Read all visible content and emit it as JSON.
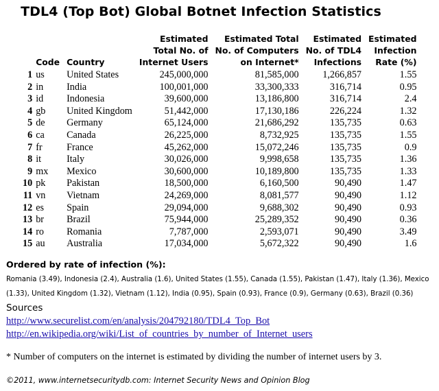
{
  "title": "TDL4 (Top Bot) Global Botnet Infection Statistics",
  "table": {
    "headers": {
      "code": "Code",
      "country": "Country",
      "users_1": "Estimated",
      "users_2": "Total No. of",
      "users_3": "Internet Users",
      "computers_1": "Estimated Total",
      "computers_2": "No. of Computers",
      "computers_3": "on Internet*",
      "infections_1": "Estimated",
      "infections_2": "No. of TDL4",
      "infections_3": "Infections",
      "rate_1": "Estimated",
      "rate_2": "Infection",
      "rate_3": "Rate (%)"
    },
    "rows": [
      {
        "rank": "1",
        "code": "us",
        "country": "United States",
        "users": "245,000,000",
        "computers": "81,585,000",
        "infections": "1,266,857",
        "rate": "1.55"
      },
      {
        "rank": "2",
        "code": "in",
        "country": "India",
        "users": "100,001,000",
        "computers": "33,300,333",
        "infections": "316,714",
        "rate": "0.95"
      },
      {
        "rank": "3",
        "code": "id",
        "country": "Indonesia",
        "users": "39,600,000",
        "computers": "13,186,800",
        "infections": "316,714",
        "rate": "2.4"
      },
      {
        "rank": "4",
        "code": "gb",
        "country": "United Kingdom",
        "users": "51,442,000",
        "computers": "17,130,186",
        "infections": "226,224",
        "rate": "1.32"
      },
      {
        "rank": "5",
        "code": "de",
        "country": "Germany",
        "users": "65,124,000",
        "computers": "21,686,292",
        "infections": "135,735",
        "rate": "0.63"
      },
      {
        "rank": "6",
        "code": "ca",
        "country": "Canada",
        "users": "26,225,000",
        "computers": "8,732,925",
        "infections": "135,735",
        "rate": "1.55"
      },
      {
        "rank": "7",
        "code": "fr",
        "country": "France",
        "users": "45,262,000",
        "computers": "15,072,246",
        "infections": "135,735",
        "rate": "0.9"
      },
      {
        "rank": "8",
        "code": "it",
        "country": "Italy",
        "users": "30,026,000",
        "computers": "9,998,658",
        "infections": "135,735",
        "rate": "1.36"
      },
      {
        "rank": "9",
        "code": "mx",
        "country": "Mexico",
        "users": "30,600,000",
        "computers": "10,189,800",
        "infections": "135,735",
        "rate": "1.33"
      },
      {
        "rank": "10",
        "code": "pk",
        "country": "Pakistan",
        "users": "18,500,000",
        "computers": "6,160,500",
        "infections": "90,490",
        "rate": "1.47"
      },
      {
        "rank": "11",
        "code": "vn",
        "country": "Vietnam",
        "users": "24,269,000",
        "computers": "8,081,577",
        "infections": "90,490",
        "rate": "1.12"
      },
      {
        "rank": "12",
        "code": "es",
        "country": "Spain",
        "users": "29,094,000",
        "computers": "9,688,302",
        "infections": "90,490",
        "rate": "0.93"
      },
      {
        "rank": "13",
        "code": "br",
        "country": "Brazil",
        "users": "75,944,000",
        "computers": "25,289,352",
        "infections": "90,490",
        "rate": "0.36"
      },
      {
        "rank": "14",
        "code": "ro",
        "country": "Romania",
        "users": "7,787,000",
        "computers": "2,593,071",
        "infections": "90,490",
        "rate": "3.49"
      },
      {
        "rank": "15",
        "code": "au",
        "country": "Australia",
        "users": "17,034,000",
        "computers": "5,672,322",
        "infections": "90,490",
        "rate": "1.6"
      }
    ]
  },
  "ordered": {
    "heading": "Ordered by rate of infection (%):",
    "text": "Romania (3.49), Indonesia (2.4), Australia (1.6), United States (1.55), Canada (1.55), Pakistan (1.47), Italy (1.36), Mexico (1.33), United Kingdom (1.32), Vietnam (1.12), India (0.95), Spain (0.93), France (0.9), Germany (0.63), Brazil (0.36)"
  },
  "sources": {
    "heading": "Sources",
    "link1": "http://www.securelist.com/en/analysis/204792180/TDL4_Top_Bot",
    "link2": "http://en.wikipedia.org/wiki/List_of_countries_by_number_of_Internet_users"
  },
  "note": "* Number of computers on the internet is estimated by dividing the number of internet users by 3.",
  "footer": "©2011, www.internetsecuritydb.com: Internet Security News and Opinion Blog",
  "colors": {
    "link": "#1a0dab",
    "text": "#000000",
    "background": "#ffffff"
  }
}
